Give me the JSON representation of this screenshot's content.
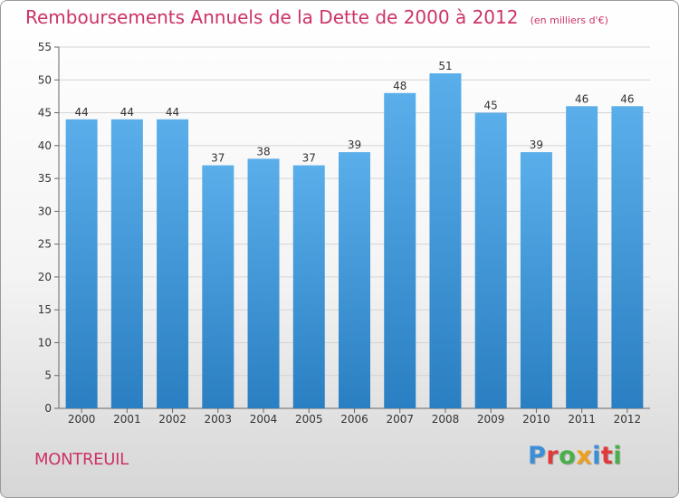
{
  "header": {
    "title": "Remboursements Annuels de la Dette de 2000 à 2012",
    "unit": "(en milliers d'€)"
  },
  "footer": {
    "city": "MONTREUIL",
    "logo": "Proxiti"
  },
  "colors": {
    "title": "#cc3366",
    "bar_light": "#5aaeea",
    "bar_dark": "#2a7fc2",
    "logo_letters": [
      "#3a8fd8",
      "#e03a3a",
      "#49b049",
      "#f0a020",
      "#3a8fd8",
      "#e03a3a",
      "#49b049"
    ]
  },
  "chart_data": {
    "type": "bar",
    "categories": [
      "2000",
      "2001",
      "2002",
      "2003",
      "2004",
      "2005",
      "2006",
      "2007",
      "2008",
      "2009",
      "2010",
      "2011",
      "2012"
    ],
    "values": [
      44,
      44,
      44,
      37,
      38,
      37,
      39,
      48,
      51,
      45,
      39,
      46,
      46
    ],
    "data_labels": [
      "44",
      "44",
      "44",
      "37",
      "38",
      "37",
      "39",
      "48",
      "51",
      "45",
      "39",
      "46",
      "46"
    ],
    "yticks": [
      "0",
      "5",
      "10",
      "15",
      "20",
      "25",
      "30",
      "35",
      "40",
      "45",
      "50",
      "55"
    ],
    "ylim": [
      0,
      55
    ],
    "xlabel": "",
    "ylabel": "",
    "grid": true
  }
}
